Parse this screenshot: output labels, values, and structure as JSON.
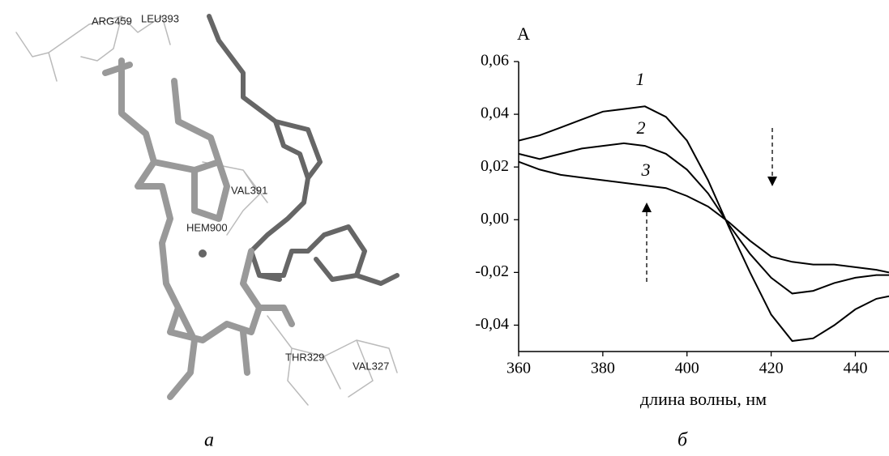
{
  "panels": [
    "а",
    "б"
  ],
  "molecule": {
    "labels": [
      "ARG459",
      "LEU393",
      "VAL391",
      "HEM900",
      "THR329",
      "VAL327"
    ]
  },
  "chart_data": {
    "type": "line",
    "y_label": "A",
    "x_label": "длина волны, нм",
    "x": [
      360,
      365,
      370,
      375,
      380,
      385,
      390,
      395,
      400,
      405,
      410,
      415,
      420,
      425,
      430,
      435,
      440,
      445,
      448
    ],
    "series": [
      {
        "name": "1",
        "color": "#000000",
        "values": [
          0.03,
          0.032,
          0.035,
          0.038,
          0.041,
          0.042,
          0.043,
          0.039,
          0.03,
          0.015,
          -0.003,
          -0.02,
          -0.036,
          -0.046,
          -0.045,
          -0.04,
          -0.034,
          -0.03,
          -0.029
        ]
      },
      {
        "name": "2",
        "color": "#000000",
        "values": [
          0.025,
          0.023,
          0.025,
          0.027,
          0.028,
          0.029,
          0.028,
          0.025,
          0.019,
          0.01,
          -0.002,
          -0.013,
          -0.022,
          -0.028,
          -0.027,
          -0.024,
          -0.022,
          -0.021,
          -0.021
        ]
      },
      {
        "name": "3",
        "color": "#000000",
        "values": [
          0.022,
          0.019,
          0.017,
          0.016,
          0.015,
          0.014,
          0.013,
          0.012,
          0.009,
          0.005,
          -0.001,
          -0.008,
          -0.014,
          -0.016,
          -0.017,
          -0.017,
          -0.018,
          -0.019,
          -0.02
        ]
      }
    ],
    "xlim": [
      360,
      448
    ],
    "ylim": [
      -0.05,
      0.06
    ],
    "xticks": [
      360,
      380,
      400,
      420,
      440
    ],
    "yticks": [
      {
        "value": 0.06,
        "label": "0,06"
      },
      {
        "value": 0.04,
        "label": "0,04"
      },
      {
        "value": 0.02,
        "label": "0,02"
      },
      {
        "value": 0,
        "label": "0,00"
      },
      {
        "value": -0.02,
        "label": "-0,02"
      },
      {
        "value": -0.04,
        "label": "-0,04"
      }
    ]
  }
}
